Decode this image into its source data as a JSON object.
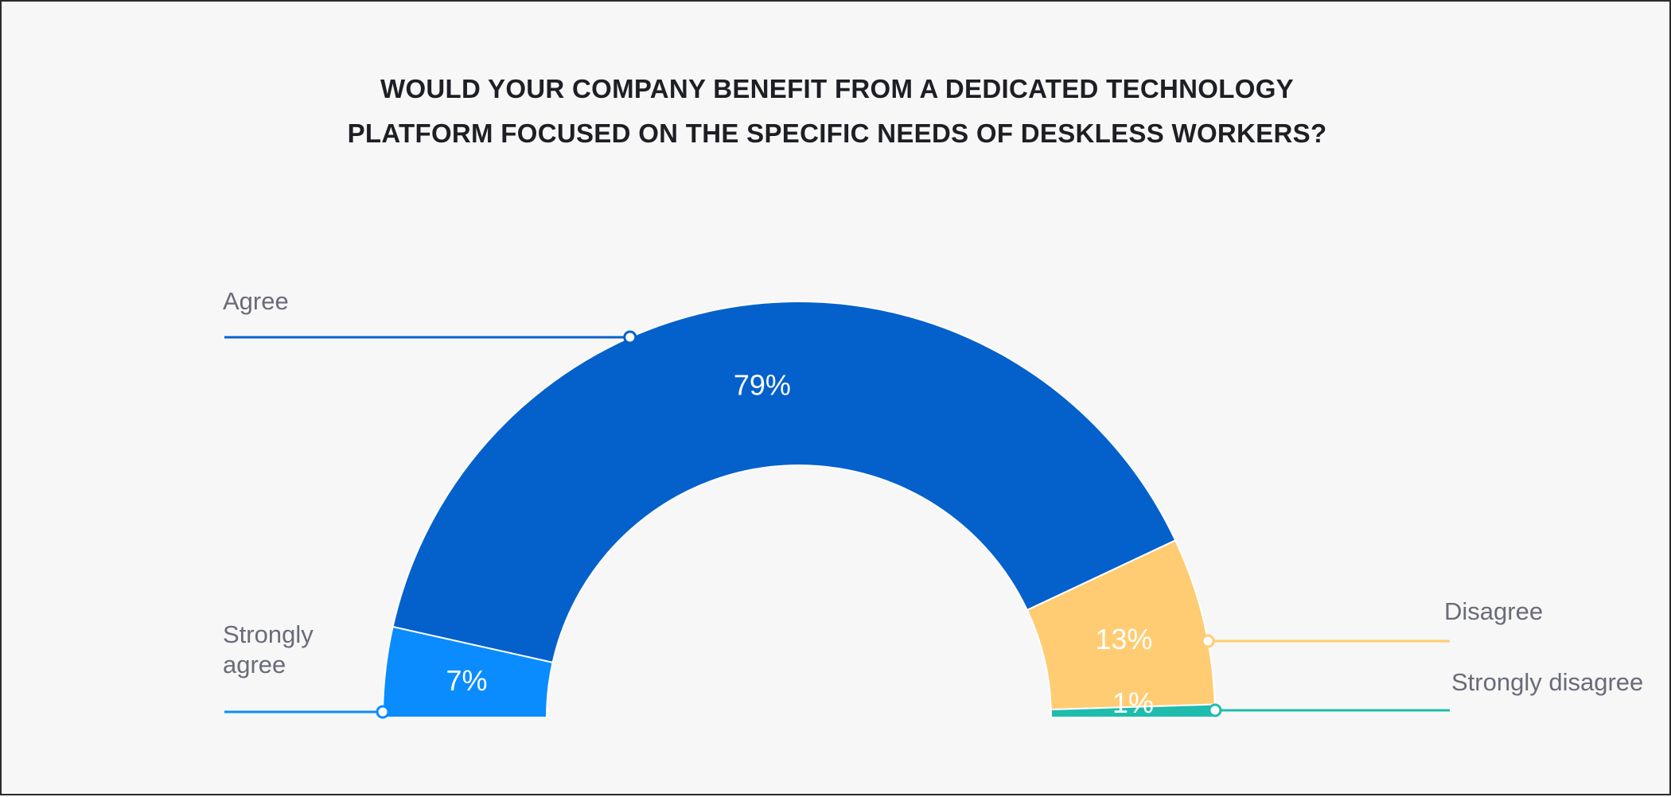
{
  "chart_data": {
    "type": "pie",
    "variant": "semi-donut",
    "title_lines": [
      "WOULD YOUR COMPANY BENEFIT FROM A DEDICATED TECHNOLOGY",
      "PLATFORM FOCUSED ON THE SPECIFIC NEEDS OF DESKLESS WORKERS?"
    ],
    "slices": [
      {
        "name": "Strongly agree",
        "label_lines": [
          "Strongly",
          "agree"
        ],
        "value": 7,
        "display": "7%",
        "color": "#0a8cff"
      },
      {
        "name": "Agree",
        "label_lines": [
          "Agree"
        ],
        "value": 79,
        "display": "79%",
        "color": "#0461cc"
      },
      {
        "name": "Disagree",
        "label_lines": [
          "Disagree"
        ],
        "value": 13,
        "display": "13%",
        "color": "#ffcc73"
      },
      {
        "name": "Strongly disagree",
        "label_lines": [
          "Strongly disagree"
        ],
        "value": 1,
        "display": "1%",
        "color": "#1fbcae"
      }
    ]
  }
}
